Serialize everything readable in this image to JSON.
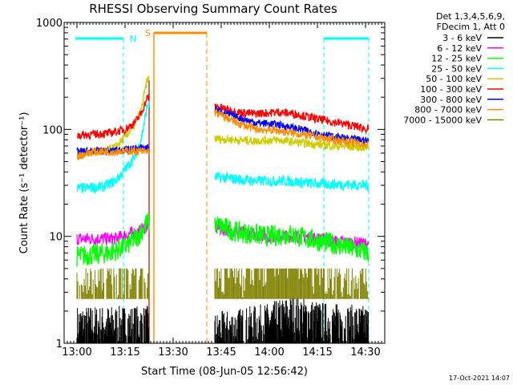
{
  "chart_data": {
    "type": "line",
    "title": "RHESSI Observing Summary Count Rates",
    "xlabel": "Start Time (08-Jun-05 12:56:42)",
    "ylabel": "Count Rate (s⁻¹ detector⁻¹)",
    "yscale": "log",
    "ylim": [
      1,
      1000
    ],
    "xlim_minutes": [
      -4,
      96
    ],
    "x_ticks": [
      {
        "value": 0,
        "label": "13:00"
      },
      {
        "value": 15,
        "label": "13:15"
      },
      {
        "value": 30,
        "label": "13:30"
      },
      {
        "value": 45,
        "label": "13:45"
      },
      {
        "value": 60,
        "label": "14:00"
      },
      {
        "value": 75,
        "label": "14:15"
      },
      {
        "value": 90,
        "label": "14:30"
      }
    ],
    "y_ticks": [
      {
        "value": 1,
        "label": "1"
      },
      {
        "value": 10,
        "label": "10"
      },
      {
        "value": 100,
        "label": "100"
      },
      {
        "value": 1000,
        "label": "1000"
      }
    ],
    "legend_header": [
      "Det 1,3,4,5,6,9,",
      "FDecim 1, Att 0"
    ],
    "data_gap_minutes": [
      22.5,
      43
    ],
    "annotations": {
      "night": {
        "label": "N",
        "color": "#00ffff",
        "segments": [
          [
            -0.5,
            14.5
          ],
          [
            77,
            91
          ]
        ],
        "boundaries": [
          14.5,
          77,
          91
        ]
      },
      "saa": {
        "label": "S",
        "color": "#ff8c00",
        "segments": [
          [
            24,
            40.5
          ]
        ],
        "boundaries": [
          24,
          40.5
        ]
      },
      "flare_marks": [
        {
          "minute": 22.5,
          "color": "#cc0000"
        }
      ]
    },
    "series": [
      {
        "name": "3 - 6 keV",
        "color": "#000000",
        "style": "noise",
        "low": 1,
        "high": 2.9,
        "points": [
          [
            0,
            1.5
          ],
          [
            22,
            1.5
          ],
          [
            43,
            1.3
          ],
          [
            60,
            1.6
          ],
          [
            67,
            1.9
          ],
          [
            78,
            1.6
          ],
          [
            91,
            1.5
          ]
        ]
      },
      {
        "name": "6 - 12 keV",
        "color": "#ff00ff",
        "jitter": 0.06,
        "points": [
          [
            0,
            9.5
          ],
          [
            12,
            9.5
          ],
          [
            16,
            10.5
          ],
          [
            19,
            11
          ],
          [
            22,
            12.5
          ],
          [
            43,
            12
          ],
          [
            50,
            11
          ],
          [
            60,
            10
          ],
          [
            70,
            10
          ],
          [
            80,
            9
          ],
          [
            91,
            8.5
          ]
        ]
      },
      {
        "name": "12 - 25 keV",
        "color": "#00ff00",
        "jitter": 0.1,
        "points": [
          [
            0,
            6.5
          ],
          [
            10,
            7
          ],
          [
            15,
            8
          ],
          [
            19,
            10
          ],
          [
            22,
            13.5
          ],
          [
            43,
            13
          ],
          [
            50,
            11
          ],
          [
            60,
            10
          ],
          [
            66,
            10.5
          ],
          [
            72,
            9.5
          ],
          [
            80,
            8.5
          ],
          [
            91,
            7
          ]
        ]
      },
      {
        "name": "25 - 50 keV",
        "color": "#00ffff",
        "jitter": 0.05,
        "points": [
          [
            0,
            28
          ],
          [
            8,
            29
          ],
          [
            12,
            33
          ],
          [
            15,
            42
          ],
          [
            18,
            55
          ],
          [
            20,
            80
          ],
          [
            22,
            170
          ],
          [
            43,
            36
          ],
          [
            55,
            33
          ],
          [
            65,
            33
          ],
          [
            75,
            31
          ],
          [
            91,
            30
          ]
        ]
      },
      {
        "name": "50 - 100 keV",
        "color": "#cccc00",
        "jitter": 0.04,
        "points": [
          [
            0,
            60
          ],
          [
            8,
            62
          ],
          [
            12,
            68
          ],
          [
            15,
            85
          ],
          [
            18,
            110
          ],
          [
            20,
            150
          ],
          [
            22,
            300
          ],
          [
            43,
            82
          ],
          [
            55,
            78
          ],
          [
            62,
            80
          ],
          [
            70,
            75
          ],
          [
            80,
            70
          ],
          [
            91,
            68
          ]
        ]
      },
      {
        "name": "100 - 300 keV",
        "color": "#ff0000",
        "jitter": 0.04,
        "points": [
          [
            0,
            88
          ],
          [
            10,
            92
          ],
          [
            15,
            100
          ],
          [
            18,
            115
          ],
          [
            20,
            140
          ],
          [
            22,
            200
          ],
          [
            43,
            165
          ],
          [
            50,
            145
          ],
          [
            55,
            140
          ],
          [
            63,
            145
          ],
          [
            68,
            140
          ],
          [
            75,
            125
          ],
          [
            85,
            110
          ],
          [
            91,
            100
          ]
        ]
      },
      {
        "name": "300 - 800 keV",
        "color": "#0000ff",
        "jitter": 0.035,
        "points": [
          [
            0,
            62
          ],
          [
            10,
            63
          ],
          [
            16,
            65
          ],
          [
            22,
            68
          ],
          [
            43,
            155
          ],
          [
            50,
            130
          ],
          [
            56,
            115
          ],
          [
            62,
            112
          ],
          [
            70,
            100
          ],
          [
            80,
            85
          ],
          [
            91,
            78
          ]
        ]
      },
      {
        "name": "800 - 7000 keV",
        "color": "#ff8c00",
        "jitter": 0.04,
        "points": [
          [
            0,
            56
          ],
          [
            5,
            62
          ],
          [
            10,
            62
          ],
          [
            16,
            63
          ],
          [
            22,
            62
          ],
          [
            43,
            145
          ],
          [
            50,
            115
          ],
          [
            56,
            100
          ],
          [
            62,
            98
          ],
          [
            70,
            90
          ],
          [
            80,
            80
          ],
          [
            91,
            72
          ]
        ]
      },
      {
        "name": "7000 - 15000 keV",
        "color": "#808000",
        "style": "noise",
        "low": 2.6,
        "high": 5,
        "points": [
          [
            0,
            3.5
          ],
          [
            10,
            4
          ],
          [
            15,
            4.3
          ],
          [
            22,
            4.5
          ],
          [
            43,
            4.5
          ],
          [
            55,
            5
          ],
          [
            62,
            6.5
          ],
          [
            66,
            7
          ],
          [
            72,
            5.5
          ],
          [
            80,
            4.5
          ],
          [
            91,
            3.5
          ]
        ]
      }
    ],
    "date_stamp": "17-Oct-2021 14:07"
  }
}
